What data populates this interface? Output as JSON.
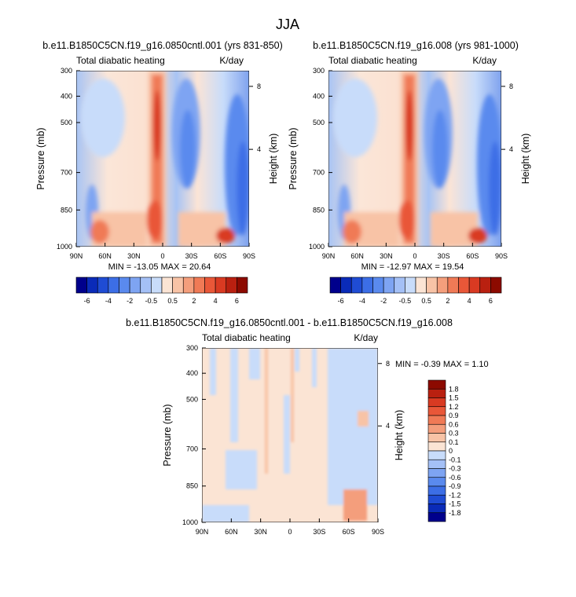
{
  "figure_title": "JJA",
  "chart_data": [
    {
      "type": "heatmap",
      "title": "b.e11.B1850C5CN.f19_g16.0850cntl.001 (yrs 831-850)",
      "subtitle_left": "Total diabatic heating",
      "subtitle_right": "K/day",
      "xlabel": "",
      "ylabel": "Pressure (mb)",
      "y2label": "Height (km)",
      "x_tick_labels": [
        "90N",
        "60N",
        "30N",
        "0",
        "30S",
        "60S",
        "90S"
      ],
      "y_tick_labels": [
        "300",
        "400",
        "500",
        "700",
        "850",
        "1000"
      ],
      "y2_tick_labels": [
        "8",
        "4"
      ],
      "y_scale": "log",
      "stats": "MIN = -13.05  MAX =  20.64",
      "colorbar": {
        "orientation": "horizontal",
        "labels": [
          "-6",
          "-4",
          "-2",
          "-0.5",
          "0.5",
          "2",
          "4",
          "6"
        ],
        "colors": [
          "#00008c",
          "#0a2bb8",
          "#1f4cd4",
          "#3c6ee6",
          "#5a8aee",
          "#7ea4f2",
          "#a4c0f6",
          "#c8dcfa",
          "#fbe4d4",
          "#f8c3a6",
          "#f49e7c",
          "#f07a56",
          "#e95738",
          "#d93a22",
          "#b92010",
          "#8c0a00"
        ]
      }
    },
    {
      "type": "heatmap",
      "title": "b.e11.B1850C5CN.f19_g16.008 (yrs 981-1000)",
      "subtitle_left": "Total diabatic heating",
      "subtitle_right": "K/day",
      "xlabel": "",
      "ylabel": "Pressure (mb)",
      "y2label": "Height (km)",
      "x_tick_labels": [
        "90N",
        "60N",
        "30N",
        "0",
        "30S",
        "60S",
        "90S"
      ],
      "y_tick_labels": [
        "300",
        "400",
        "500",
        "700",
        "850",
        "1000"
      ],
      "y2_tick_labels": [
        "8",
        "4"
      ],
      "y_scale": "log",
      "stats": "MIN = -12.97  MAX =  19.54",
      "colorbar": {
        "orientation": "horizontal",
        "labels": [
          "-6",
          "-4",
          "-2",
          "-0.5",
          "0.5",
          "2",
          "4",
          "6"
        ],
        "colors": [
          "#00008c",
          "#0a2bb8",
          "#1f4cd4",
          "#3c6ee6",
          "#5a8aee",
          "#7ea4f2",
          "#a4c0f6",
          "#c8dcfa",
          "#fbe4d4",
          "#f8c3a6",
          "#f49e7c",
          "#f07a56",
          "#e95738",
          "#d93a22",
          "#b92010",
          "#8c0a00"
        ]
      }
    },
    {
      "type": "heatmap",
      "title": "b.e11.B1850C5CN.f19_g16.0850cntl.001 - b.e11.B1850C5CN.f19_g16.008",
      "subtitle_left": "Total diabatic heating",
      "subtitle_right": "K/day",
      "xlabel": "",
      "ylabel": "Pressure (mb)",
      "y2label": "Height (km)",
      "x_tick_labels": [
        "90N",
        "60N",
        "30N",
        "0",
        "30S",
        "60S",
        "90S"
      ],
      "y_tick_labels": [
        "300",
        "400",
        "500",
        "700",
        "850",
        "1000"
      ],
      "y2_tick_labels": [
        "8",
        "4"
      ],
      "y_scale": "log",
      "stats": "MIN = -0.39  MAX =   1.10",
      "colorbar": {
        "orientation": "vertical",
        "labels": [
          "1.8",
          "1.5",
          "1.2",
          "0.9",
          "0.6",
          "0.3",
          "0.1",
          "0",
          "-0.1",
          "-0.3",
          "-0.6",
          "-0.9",
          "-1.2",
          "-1.5",
          "-1.8"
        ],
        "colors": [
          "#8c0a00",
          "#b92010",
          "#d93a22",
          "#e95738",
          "#f07a56",
          "#f49e7c",
          "#f8c3a6",
          "#fbe4d4",
          "#c8dcfa",
          "#a4c0f6",
          "#7ea4f2",
          "#5a8aee",
          "#3c6ee6",
          "#1f4cd4",
          "#0a2bb8",
          "#00008c"
        ]
      }
    }
  ]
}
